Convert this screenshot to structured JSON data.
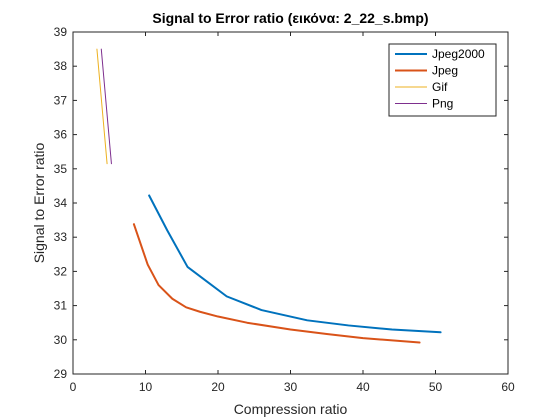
{
  "chart_data": {
    "type": "line",
    "title": "Signal to Error ratio (εικόνα: 2_22_s.bmp)",
    "xlabel": "Compression ratio",
    "ylabel": "Signal to Error ratio",
    "xlim": [
      0,
      60
    ],
    "ylim": [
      29,
      39
    ],
    "xticks": [
      0,
      10,
      20,
      30,
      40,
      50,
      60
    ],
    "yticks": [
      29,
      30,
      31,
      32,
      33,
      34,
      35,
      36,
      37,
      38,
      39
    ],
    "grid": false,
    "legend_position": "top-right",
    "series": [
      {
        "name": "Jpeg2000",
        "color": "#0072BD",
        "line_width": 2,
        "x": [
          10.5,
          13,
          15.8,
          18.5,
          21.2,
          26,
          32.3,
          38,
          44,
          50.7
        ],
        "y": [
          34.22,
          33.2,
          32.13,
          31.7,
          31.27,
          30.87,
          30.57,
          30.42,
          30.3,
          30.22
        ]
      },
      {
        "name": "Jpeg",
        "color": "#D95319",
        "line_width": 2,
        "x": [
          8.4,
          10.3,
          11.8,
          13.7,
          15.6,
          17.5,
          20,
          24,
          30,
          35,
          40,
          47.8
        ],
        "y": [
          33.38,
          32.2,
          31.6,
          31.2,
          30.95,
          30.82,
          30.68,
          30.5,
          30.3,
          30.17,
          30.05,
          29.92
        ]
      },
      {
        "name": "Gif",
        "color": "#EDB120",
        "line_width": 1,
        "x": [
          3.3,
          4.7
        ],
        "y": [
          38.5,
          35.15
        ]
      },
      {
        "name": "Png",
        "color": "#7E2F8E",
        "line_width": 1,
        "x": [
          3.9,
          5.3
        ],
        "y": [
          38.5,
          35.15
        ]
      }
    ]
  }
}
